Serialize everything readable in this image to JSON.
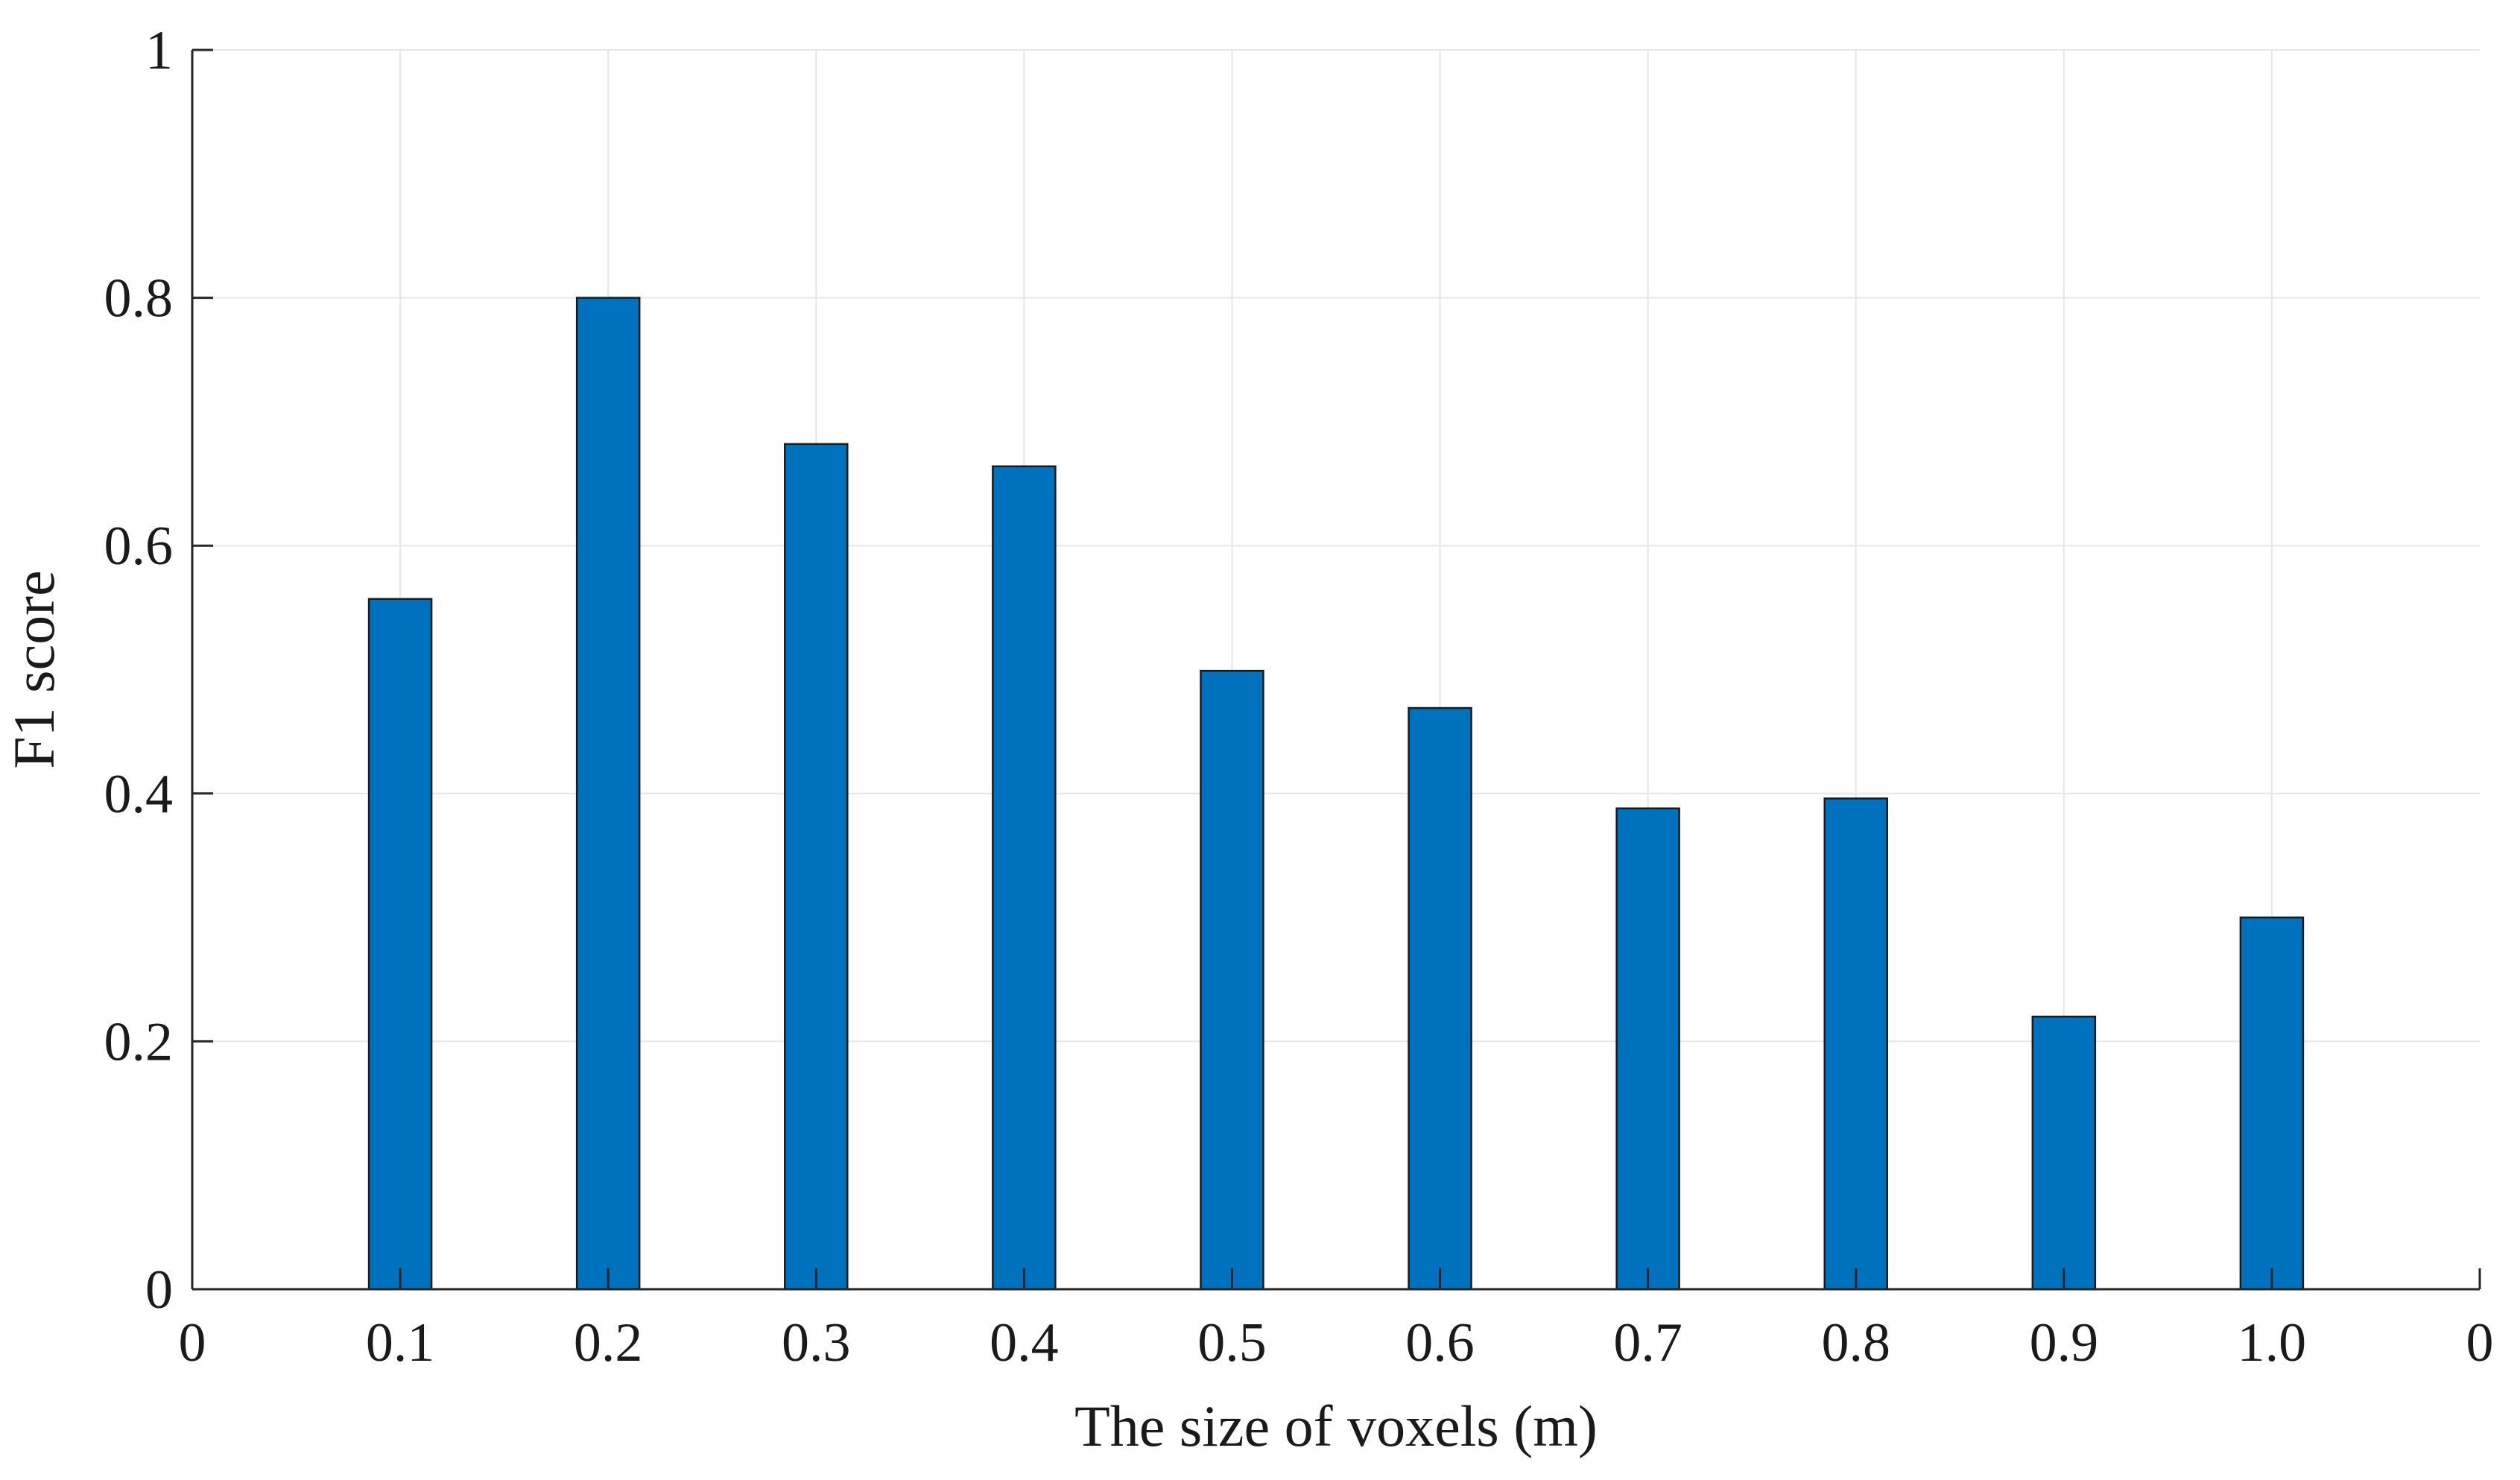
{
  "chart_data": {
    "type": "bar",
    "categories": [
      "0.1",
      "0.2",
      "0.3",
      "0.4",
      "0.5",
      "0.6",
      "0.7",
      "0.8",
      "0.9",
      "1.0"
    ],
    "x": [
      0.1,
      0.2,
      0.3,
      0.4,
      0.5,
      0.6,
      0.7,
      0.8,
      0.9,
      1.0
    ],
    "values": [
      0.557,
      0.8,
      0.682,
      0.664,
      0.499,
      0.469,
      0.388,
      0.396,
      0.22,
      0.3
    ],
    "x_tick_labels": [
      "0",
      "0.1",
      "0.2",
      "0.3",
      "0.4",
      "0.5",
      "0.6",
      "0.7",
      "0.8",
      "0.9",
      "1.0",
      "0"
    ],
    "y_tick_labels": [
      "0",
      "0.2",
      "0.4",
      "0.6",
      "0.8",
      "1"
    ],
    "y_ticks": [
      0,
      0.2,
      0.4,
      0.6,
      0.8,
      1
    ],
    "xlabel": "The size of voxels (m)",
    "ylabel": "F1 score",
    "xlim": [
      0,
      1.1
    ],
    "ylim": [
      0,
      1
    ],
    "grid": true,
    "bar_color": "#0072BD"
  }
}
